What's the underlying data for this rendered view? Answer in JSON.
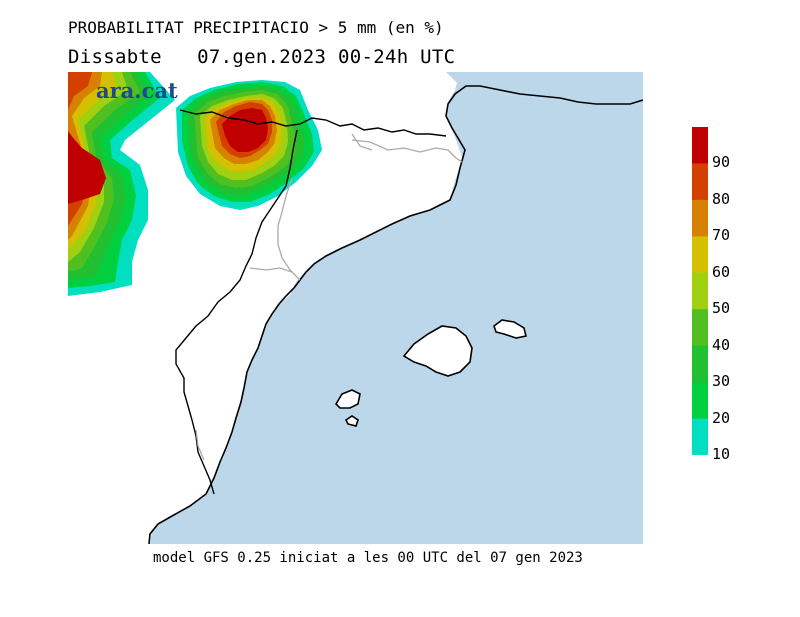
{
  "header": {
    "title": "PROBABILITAT PRECIPITACIO > 5 mm (en %)",
    "subtitle": "Dissabte   07.gen.2023 00-24h UTC"
  },
  "brand": {
    "logo_text": "ara.cat"
  },
  "footer": {
    "caption": "model GFS 0.25 iniciat a les 00 UTC del 07 gen 2023"
  },
  "legend": {
    "ticks": [
      "10",
      "20",
      "30",
      "40",
      "50",
      "60",
      "70",
      "80",
      "90"
    ],
    "colors": [
      "#00e0c0",
      "#00d040",
      "#20c030",
      "#50c020",
      "#a0d010",
      "#d4c000",
      "#d88000",
      "#d44000",
      "#c00000"
    ]
  },
  "map": {
    "sea_color": "#bcd7ea",
    "land_color": "#ffffff",
    "coast_color": "#000000",
    "border_color": "#aaaaaa"
  }
}
